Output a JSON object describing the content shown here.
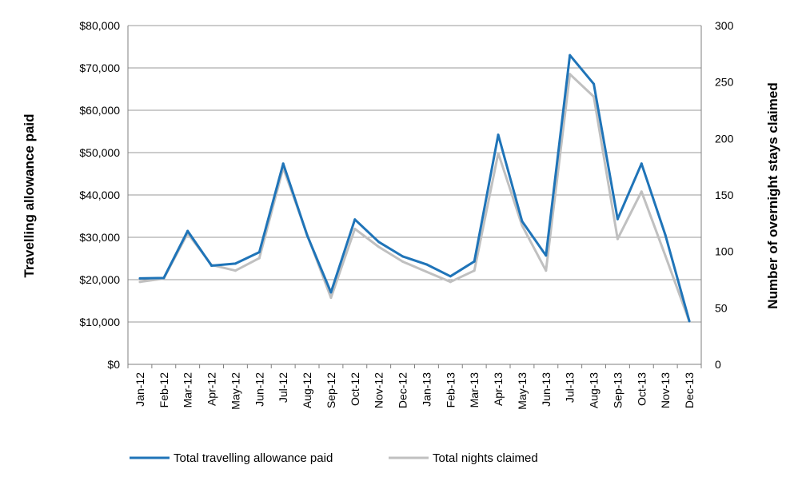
{
  "chart_data": {
    "type": "line",
    "categories": [
      "Jan-12",
      "Feb-12",
      "Mar-12",
      "Apr-12",
      "May-12",
      "Jun-12",
      "Jul-12",
      "Aug-12",
      "Sep-12",
      "Oct-12",
      "Nov-12",
      "Dec-12",
      "Jan-13",
      "Feb-13",
      "Mar-13",
      "Apr-13",
      "May-13",
      "Jun-13",
      "Jul-13",
      "Aug-13",
      "Sep-13",
      "Oct-13",
      "Nov-13",
      "Dec-13"
    ],
    "ylabel": "Travelling allowance paid",
    "y2label": "Number of overnight stays claimed",
    "ylim": [
      0,
      80000
    ],
    "y2lim": [
      0,
      300
    ],
    "y_ticks": [
      "$0",
      "$10,000",
      "$20,000",
      "$30,000",
      "$40,000",
      "$50,000",
      "$60,000",
      "$70,000",
      "$80,000"
    ],
    "y2_ticks": [
      "0",
      "50",
      "100",
      "150",
      "200",
      "250",
      "300"
    ],
    "grid": true,
    "legend_position": "bottom",
    "series": [
      {
        "name": "Total travelling allowance paid",
        "axis": "left",
        "color": "#1f74b8",
        "values": [
          20300,
          20400,
          31500,
          23300,
          23800,
          26500,
          47400,
          30500,
          17000,
          34200,
          28900,
          25500,
          23600,
          20800,
          24300,
          54200,
          33800,
          25700,
          73000,
          66200,
          34300,
          47400,
          30500,
          10200
        ]
      },
      {
        "name": "Total nights claimed",
        "axis": "right",
        "color": "#c0c0c0",
        "values": [
          73,
          76,
          116,
          88,
          83,
          94,
          174,
          115,
          59,
          120,
          104,
          91,
          82,
          73,
          83,
          187,
          123,
          83,
          257,
          237,
          111,
          153,
          96,
          38
        ]
      }
    ]
  }
}
